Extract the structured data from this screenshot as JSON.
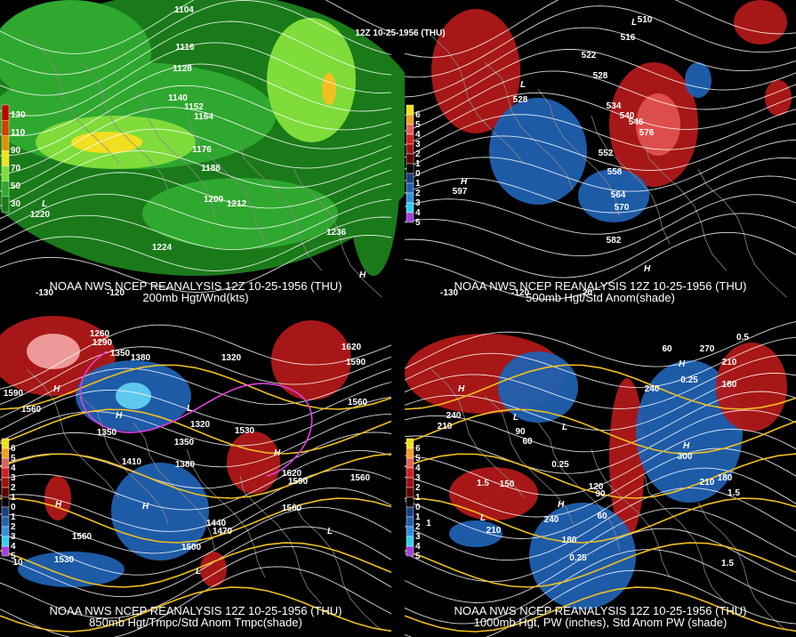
{
  "header": {
    "title": "12Z 10-25-1956 (THU)"
  },
  "panels": [
    {
      "caption": [
        "NOAA NWS NCEP REANALYSIS 12Z 10-25-1956 (THU)",
        "200mb Hgt/Wnd(kts)"
      ],
      "legend": [
        "130",
        "110",
        "90",
        "70",
        "50",
        "30"
      ],
      "labels": [
        "1104",
        "1116",
        "1128",
        "1140",
        "1152",
        "1164",
        "1176",
        "1188",
        "1200",
        "1212",
        "1224",
        "1236",
        "1220"
      ],
      "markers": [
        "L",
        "H"
      ],
      "axis": [
        "-130",
        "-120"
      ]
    },
    {
      "caption": [
        "NOAA NWS NCEP REANALYSIS 12Z 10-25-1956 (THU)",
        "500mb Hgt/Std Anom(shade)"
      ],
      "legend": [
        "6",
        "5",
        "4",
        "3",
        "2",
        "1",
        "0",
        "1",
        "2",
        "3",
        "4",
        "5"
      ],
      "labels": [
        "510",
        "516",
        "522",
        "528",
        "528",
        "534",
        "540",
        "546",
        "552",
        "558",
        "564",
        "570",
        "576",
        "582",
        "597"
      ],
      "markers": [
        "L",
        "L",
        "H",
        "H"
      ],
      "axis": [
        "-130",
        "-120",
        "20"
      ]
    },
    {
      "caption": [
        "NOAA NWS NCEP REANALYSIS 12Z 10-25-1956 (THU)",
        "850mb Hgt/Tmpc/Std Anom Tmpc(shade)"
      ],
      "legend": [
        "6",
        "5",
        "4",
        "3",
        "2",
        "1",
        "0",
        "1",
        "2",
        "3",
        "4",
        "5"
      ],
      "labels": [
        "1260",
        "1290",
        "1350",
        "1380",
        "1320",
        "1350",
        "1350",
        "1410",
        "1380",
        "1320",
        "1530",
        "1590",
        "1560",
        "1620",
        "1620",
        "1590",
        "1440",
        "1470",
        "1500",
        "1560",
        "1560",
        "1530",
        "1560",
        "1590",
        "1560",
        "10"
      ],
      "markers": [
        "H",
        "H",
        "L",
        "H",
        "H",
        "H",
        "L",
        "L"
      ],
      "axis": []
    },
    {
      "caption": [
        "NOAA NWS NCEP REANALYSIS 12Z 10-25-1956 (THU)",
        "1000mb Hgt, PW (inches), Std Anom PW (shade)"
      ],
      "legend": [
        "6",
        "5",
        "4",
        "3",
        "2",
        "1",
        "0",
        "1",
        "2",
        "3",
        "4",
        "5"
      ],
      "labels": [
        "270",
        "210",
        "180",
        "240",
        "210",
        "240",
        "60",
        "90",
        "60",
        "150",
        "120",
        "90",
        "60",
        "180",
        "240",
        "210",
        "300",
        "210",
        "180",
        "0.5",
        "0.25",
        "0.25",
        "1.5",
        "1.5",
        "1.5",
        "0.25",
        "1"
      ],
      "markers": [
        "H",
        "L",
        "L",
        "H",
        "H",
        "L",
        "H"
      ],
      "axis": []
    }
  ]
}
